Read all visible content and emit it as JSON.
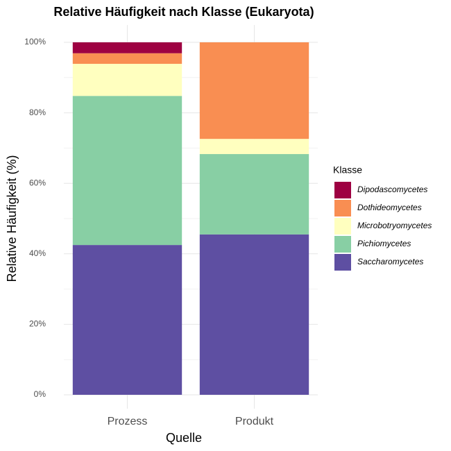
{
  "chart_data": {
    "type": "stacked_bar",
    "title": "Relative Häufigkeit nach Klasse (Eukaryota)",
    "x_label": "Quelle",
    "y_label": "Relative Häufigkeit (%)",
    "legend_title": "Klasse",
    "legend_position": "right",
    "grid": true,
    "categories": [
      "Prozess",
      "Produkt"
    ],
    "series": [
      {
        "name": "Saccharomycetes",
        "color": "#5E4FA2",
        "values": [
          42.5,
          45.5
        ]
      },
      {
        "name": "Pichiomycetes",
        "color": "#88CFA4",
        "values": [
          42.3,
          22.8
        ]
      },
      {
        "name": "Microbotryomycetes",
        "color": "#FFFFBF",
        "values": [
          9.1,
          4.3
        ]
      },
      {
        "name": "Dothideomycetes",
        "color": "#F98E52",
        "values": [
          3.0,
          27.4
        ]
      },
      {
        "name": "Dipodascomycetes",
        "color": "#9E0142",
        "values": [
          3.1,
          0
        ]
      }
    ],
    "ylim": [
      0,
      100
    ],
    "yticks": [
      {
        "value": 0,
        "label": "0%"
      },
      {
        "value": 20,
        "label": "20%"
      },
      {
        "value": 40,
        "label": "40%"
      },
      {
        "value": 60,
        "label": "60%"
      },
      {
        "value": 80,
        "label": "80%"
      },
      {
        "value": 100,
        "label": "100%"
      }
    ],
    "yticks_minor": [
      10,
      30,
      50,
      70,
      90
    ]
  }
}
